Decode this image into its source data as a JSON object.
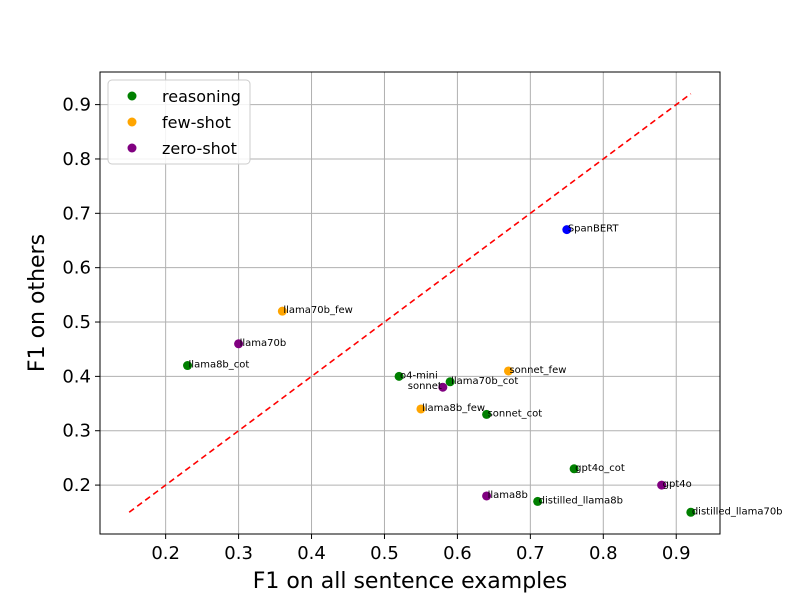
{
  "chart_data": {
    "type": "scatter",
    "title": "",
    "xlabel": "F1 on all sentence examples",
    "ylabel": "F1 on others",
    "xlim": [
      0.11,
      0.96
    ],
    "ylim": [
      0.11,
      0.96
    ],
    "grid": true,
    "xticks": [
      "0.2",
      "0.3",
      "0.4",
      "0.5",
      "0.6",
      "0.7",
      "0.8",
      "0.9"
    ],
    "yticks": [
      "0.2",
      "0.3",
      "0.4",
      "0.5",
      "0.6",
      "0.7",
      "0.8",
      "0.9"
    ],
    "reference_line": {
      "style": "dashed",
      "color": "#ff0000",
      "from": [
        0.15,
        0.15
      ],
      "to": [
        0.92,
        0.92
      ]
    },
    "legend": {
      "placement": "top-left",
      "entries": [
        {
          "name": "reasoning",
          "color": "#008000"
        },
        {
          "name": "few-shot",
          "color": "#ffa500"
        },
        {
          "name": "zero-shot",
          "color": "#800080"
        }
      ]
    },
    "points": [
      {
        "label": "SpanBERT",
        "x": 0.75,
        "y": 0.67,
        "color": "#0000ff",
        "group": "other",
        "label_pos": "right"
      },
      {
        "label": "llama70b_few",
        "x": 0.36,
        "y": 0.52,
        "color": "#ffa500",
        "group": "few-shot",
        "label_pos": "right"
      },
      {
        "label": "llama70b",
        "x": 0.3,
        "y": 0.46,
        "color": "#800080",
        "group": "zero-shot",
        "label_pos": "right"
      },
      {
        "label": "llama8b_cot",
        "x": 0.23,
        "y": 0.42,
        "color": "#008000",
        "group": "reasoning",
        "label_pos": "right"
      },
      {
        "label": "o4-mini",
        "x": 0.52,
        "y": 0.4,
        "color": "#008000",
        "group": "reasoning",
        "label_pos": "right"
      },
      {
        "label": "sonnet",
        "x": 0.58,
        "y": 0.38,
        "color": "#800080",
        "group": "zero-shot",
        "label_pos": "left"
      },
      {
        "label": "llama70b_cot",
        "x": 0.59,
        "y": 0.39,
        "color": "#008000",
        "group": "reasoning",
        "label_pos": "right"
      },
      {
        "label": "sonnet_few",
        "x": 0.67,
        "y": 0.41,
        "color": "#ffa500",
        "group": "few-shot",
        "label_pos": "right"
      },
      {
        "label": "llama8b_few",
        "x": 0.55,
        "y": 0.34,
        "color": "#ffa500",
        "group": "few-shot",
        "label_pos": "right"
      },
      {
        "label": "sonnet_cot",
        "x": 0.64,
        "y": 0.33,
        "color": "#008000",
        "group": "reasoning",
        "label_pos": "right"
      },
      {
        "label": "gpt4o_cot",
        "x": 0.76,
        "y": 0.23,
        "color": "#008000",
        "group": "reasoning",
        "label_pos": "right"
      },
      {
        "label": "gpt4o",
        "x": 0.88,
        "y": 0.2,
        "color": "#800080",
        "group": "zero-shot",
        "label_pos": "right"
      },
      {
        "label": "llama8b",
        "x": 0.64,
        "y": 0.18,
        "color": "#800080",
        "group": "zero-shot",
        "label_pos": "right"
      },
      {
        "label": "distilled_llama8b",
        "x": 0.71,
        "y": 0.17,
        "color": "#008000",
        "group": "reasoning",
        "label_pos": "right"
      },
      {
        "label": "distilled_llama70b",
        "x": 0.92,
        "y": 0.15,
        "color": "#008000",
        "group": "reasoning",
        "label_pos": "right"
      }
    ]
  }
}
